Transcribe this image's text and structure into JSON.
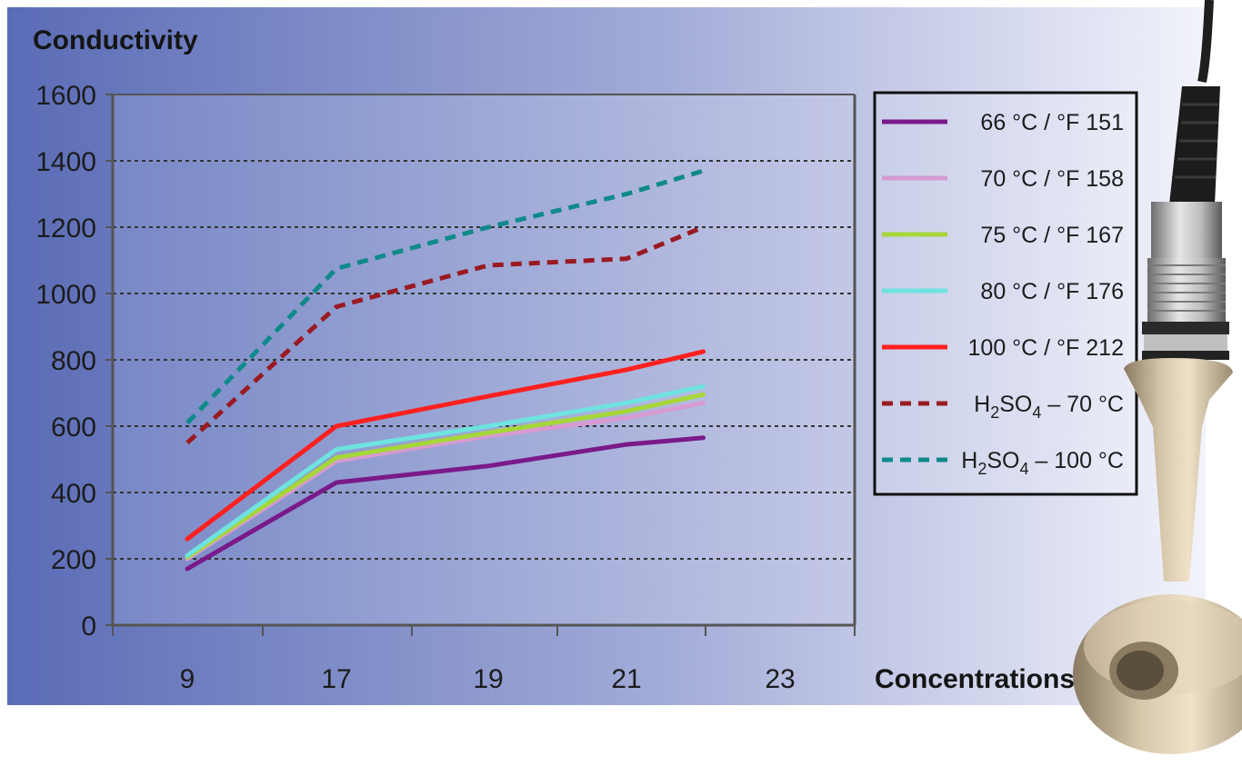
{
  "colors": {
    "background_left": "#5c6fb8",
    "background_right": "#eef0fb",
    "plot_bg_left": "#7c8cc8",
    "plot_bg_right": "#c0c6e6",
    "gridline": "#3a3a3a",
    "axis": "#555555"
  },
  "chart_data": {
    "type": "line",
    "title": "",
    "ylabel": "Conductivity",
    "xlabel": "Concentrations",
    "categories": [
      "9",
      "17",
      "19",
      "21",
      "23"
    ],
    "yticks": [
      "0",
      "200",
      "400",
      "600",
      "800",
      "1000",
      "1200",
      "1400",
      "1600"
    ],
    "ylim": [
      0,
      1600
    ],
    "grid": true,
    "legend_position": "right",
    "series": [
      {
        "name": "66 °C / °F 151",
        "color": "#7a1a8a",
        "style": "solid",
        "points": [
          [
            0,
            170
          ],
          [
            1,
            430
          ],
          [
            2,
            480
          ],
          [
            3,
            545
          ],
          [
            3.5,
            565
          ]
        ]
      },
      {
        "name": "70 °C / °F 158",
        "color": "#d79ad1",
        "style": "solid",
        "points": [
          [
            0,
            200
          ],
          [
            1,
            495
          ],
          [
            2,
            570
          ],
          [
            3,
            625
          ],
          [
            3.5,
            670
          ]
        ]
      },
      {
        "name": "75 °C / °F 167",
        "color": "#a6d63a",
        "style": "solid",
        "points": [
          [
            0,
            205
          ],
          [
            1,
            505
          ],
          [
            2,
            580
          ],
          [
            3,
            645
          ],
          [
            3.5,
            695
          ]
        ]
      },
      {
        "name": "80 °C / °F 176",
        "color": "#6ee3e0",
        "style": "solid",
        "points": [
          [
            0,
            210
          ],
          [
            1,
            530
          ],
          [
            2,
            600
          ],
          [
            3,
            670
          ],
          [
            3.5,
            720
          ]
        ]
      },
      {
        "name": "100 °C / °F 212",
        "color": "#ff2020",
        "style": "solid",
        "points": [
          [
            0,
            260
          ],
          [
            1,
            600
          ],
          [
            2,
            690
          ],
          [
            3,
            770
          ],
          [
            3.5,
            825
          ]
        ]
      },
      {
        "name": "H2SO4 – 70 °C",
        "label_parts": [
          "H",
          "2",
          "SO",
          "4",
          " – 70 °C"
        ],
        "color": "#9a1a22",
        "style": "dashed",
        "points": [
          [
            0,
            550
          ],
          [
            1,
            960
          ],
          [
            2,
            1085
          ],
          [
            3,
            1105
          ],
          [
            3.5,
            1200
          ]
        ]
      },
      {
        "name": "H2SO4 – 100 °C",
        "label_parts": [
          "H",
          "2",
          "SO",
          "4",
          " – 100 °C"
        ],
        "color": "#0f8a8a",
        "style": "dashed",
        "points": [
          [
            0,
            610
          ],
          [
            1,
            1075
          ],
          [
            2,
            1200
          ],
          [
            3,
            1300
          ],
          [
            3.5,
            1370
          ]
        ]
      }
    ]
  }
}
